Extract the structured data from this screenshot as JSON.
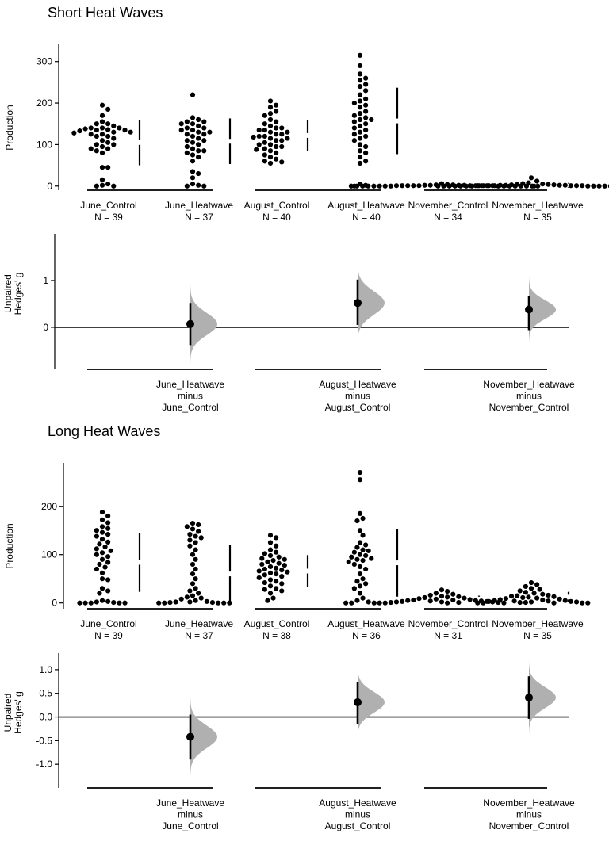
{
  "colors": {
    "ink": "#000000",
    "density": "#b0b0b0",
    "background": "#ffffff"
  },
  "chart_data": [
    {
      "type": "scatter",
      "title": "Short Heat Waves",
      "ylabel": "Production",
      "ylim": [
        -10,
        330
      ],
      "yticks": [
        0,
        100,
        200,
        300
      ],
      "grid": false,
      "groups": [
        {
          "name": "June_Control",
          "n_label": "N = 39",
          "mean": 105,
          "sd": 55,
          "values": [
            195,
            185,
            170,
            155,
            150,
            150,
            145,
            140,
            140,
            140,
            138,
            136,
            135,
            135,
            133,
            130,
            130,
            128,
            125,
            125,
            120,
            120,
            115,
            110,
            105,
            100,
            100,
            95,
            90,
            90,
            85,
            80,
            45,
            45,
            15,
            5,
            2,
            0,
            0
          ]
        },
        {
          "name": "June_Heatwave",
          "n_label": "N = 37",
          "mean": 108,
          "sd": 55,
          "values": [
            220,
            165,
            160,
            155,
            155,
            150,
            150,
            145,
            140,
            140,
            135,
            135,
            130,
            130,
            125,
            125,
            120,
            115,
            110,
            110,
            105,
            100,
            95,
            90,
            85,
            85,
            80,
            75,
            70,
            60,
            35,
            30,
            20,
            5,
            2,
            0,
            0
          ]
        },
        {
          "name": "August_Control",
          "n_label": "N = 40",
          "mean": 122,
          "sd": 38,
          "values": [
            205,
            195,
            190,
            180,
            175,
            170,
            160,
            155,
            150,
            145,
            140,
            140,
            135,
            135,
            130,
            130,
            125,
            125,
            120,
            120,
            118,
            115,
            115,
            110,
            110,
            105,
            100,
            100,
            95,
            95,
            90,
            88,
            85,
            80,
            75,
            70,
            65,
            60,
            58,
            55
          ]
        },
        {
          "name": "August_Heatwave",
          "n_label": "N = 40",
          "mean": 157,
          "sd": 80,
          "values": [
            315,
            290,
            270,
            260,
            255,
            245,
            240,
            230,
            220,
            210,
            205,
            200,
            195,
            190,
            180,
            175,
            170,
            165,
            160,
            160,
            155,
            150,
            145,
            140,
            135,
            130,
            125,
            120,
            115,
            110,
            100,
            95,
            85,
            80,
            70,
            60,
            55,
            5,
            2,
            0
          ]
        },
        {
          "name": "November_Control",
          "n_label": "N = 34",
          "mean": 1,
          "sd": 1.5,
          "values": [
            6,
            4,
            3,
            3,
            2,
            2,
            2,
            2,
            1,
            1,
            1,
            1,
            1,
            1,
            1,
            1,
            1,
            1,
            0,
            0,
            0,
            0,
            0,
            0,
            0,
            0,
            0,
            0,
            0,
            0,
            0,
            0,
            0,
            0
          ]
        },
        {
          "name": "November_Heatwave",
          "n_label": "N = 35",
          "mean": 2,
          "sd": 4,
          "values": [
            20,
            12,
            8,
            6,
            5,
            4,
            4,
            3,
            3,
            2,
            2,
            2,
            2,
            1,
            1,
            1,
            1,
            1,
            1,
            1,
            0,
            0,
            0,
            0,
            0,
            0,
            0,
            0,
            0,
            0,
            0,
            0,
            0,
            0,
            0
          ]
        }
      ]
    },
    {
      "type": "effect-size",
      "ylabel": [
        "Unpaired",
        "Hedges' g"
      ],
      "ylim": [
        -0.9,
        2.0
      ],
      "yticks": [
        1,
        0
      ],
      "contrasts": [
        {
          "label": [
            "June_Heatwave",
            "minus",
            "June_Control"
          ],
          "estimate": 0.07,
          "ci": [
            -0.38,
            0.52
          ],
          "dist_sd": 0.24
        },
        {
          "label": [
            "August_Heatwave",
            "minus",
            "August_Control"
          ],
          "estimate": 0.52,
          "ci": [
            0.05,
            1.02
          ],
          "dist_sd": 0.25
        },
        {
          "label": [
            "November_Heatwave",
            "minus",
            "November_Control"
          ],
          "estimate": 0.38,
          "ci": [
            -0.06,
            0.66
          ],
          "dist_sd": 0.2
        }
      ]
    },
    {
      "type": "scatter",
      "title": "Long Heat Waves",
      "ylabel": "Production",
      "ylim": [
        -12,
        280
      ],
      "yticks": [
        0,
        100,
        200
      ],
      "grid": false,
      "groups": [
        {
          "name": "June_Control",
          "n_label": "N = 39",
          "mean": 84,
          "sd": 61,
          "values": [
            188,
            180,
            172,
            166,
            158,
            154,
            150,
            146,
            142,
            138,
            132,
            126,
            122,
            116,
            112,
            108,
            104,
            100,
            96,
            90,
            84,
            80,
            74,
            70,
            62,
            50,
            48,
            30,
            25,
            20,
            5,
            3,
            2,
            1,
            0,
            0,
            0,
            0,
            0
          ]
        },
        {
          "name": "June_Heatwave",
          "n_label": "N = 37",
          "mean": 60,
          "sd": 60,
          "values": [
            165,
            162,
            158,
            153,
            148,
            142,
            138,
            135,
            130,
            125,
            118,
            110,
            100,
            90,
            80,
            70,
            60,
            50,
            40,
            30,
            25,
            20,
            15,
            12,
            10,
            8,
            5,
            3,
            2,
            2,
            1,
            1,
            0,
            0,
            0,
            0,
            0
          ]
        },
        {
          "name": "August_Control",
          "n_label": "N = 38",
          "mean": 66,
          "sd": 33,
          "values": [
            140,
            135,
            125,
            118,
            110,
            105,
            102,
            98,
            95,
            92,
            90,
            88,
            85,
            82,
            80,
            78,
            75,
            72,
            70,
            68,
            66,
            64,
            62,
            60,
            58,
            55,
            52,
            48,
            45,
            42,
            40,
            35,
            30,
            28,
            25,
            20,
            10,
            5
          ]
        },
        {
          "name": "August_Heatwave",
          "n_label": "N = 36",
          "mean": 83,
          "sd": 70,
          "values": [
            270,
            255,
            185,
            175,
            170,
            150,
            140,
            125,
            120,
            115,
            110,
            108,
            105,
            100,
            98,
            95,
            92,
            90,
            88,
            85,
            80,
            75,
            70,
            60,
            50,
            45,
            40,
            35,
            30,
            20,
            10,
            5,
            2,
            0,
            0,
            0
          ]
        },
        {
          "name": "November_Control",
          "n_label": "N = 31",
          "mean": 8,
          "sd": 7,
          "values": [
            27,
            24,
            20,
            18,
            16,
            14,
            13,
            12,
            11,
            10,
            9,
            8,
            7,
            6,
            6,
            5,
            5,
            4,
            4,
            3,
            3,
            2,
            2,
            2,
            1,
            1,
            1,
            0,
            0,
            0,
            0
          ]
        },
        {
          "name": "November_Heatwave",
          "n_label": "N = 35",
          "mean": 12,
          "sd": 11,
          "values": [
            42,
            38,
            34,
            30,
            28,
            25,
            22,
            20,
            18,
            16,
            15,
            14,
            13,
            12,
            11,
            10,
            9,
            8,
            7,
            6,
            5,
            5,
            4,
            4,
            3,
            3,
            2,
            2,
            1,
            1,
            0,
            0,
            0,
            0,
            0
          ]
        }
      ]
    },
    {
      "type": "effect-size",
      "ylabel": [
        "Unpaired",
        "Hedges' g"
      ],
      "ylim": [
        -1.5,
        1.35
      ],
      "yticks": [
        1.0,
        0.5,
        0.0,
        -0.5,
        -1.0
      ],
      "ytick_labels": [
        "1.0",
        "0.5",
        "0.0",
        "-0.5",
        "-1.0"
      ],
      "contrasts": [
        {
          "label": [
            "June_Heatwave",
            "minus",
            "June_Control"
          ],
          "estimate": -0.42,
          "ci": [
            -0.9,
            0.05
          ],
          "dist_sd": 0.24
        },
        {
          "label": [
            "August_Heatwave",
            "minus",
            "August_Control"
          ],
          "estimate": 0.31,
          "ci": [
            -0.15,
            0.74
          ],
          "dist_sd": 0.22
        },
        {
          "label": [
            "November_Heatwave",
            "minus",
            "November_Control"
          ],
          "estimate": 0.41,
          "ci": [
            -0.04,
            0.86
          ],
          "dist_sd": 0.22
        }
      ]
    }
  ]
}
